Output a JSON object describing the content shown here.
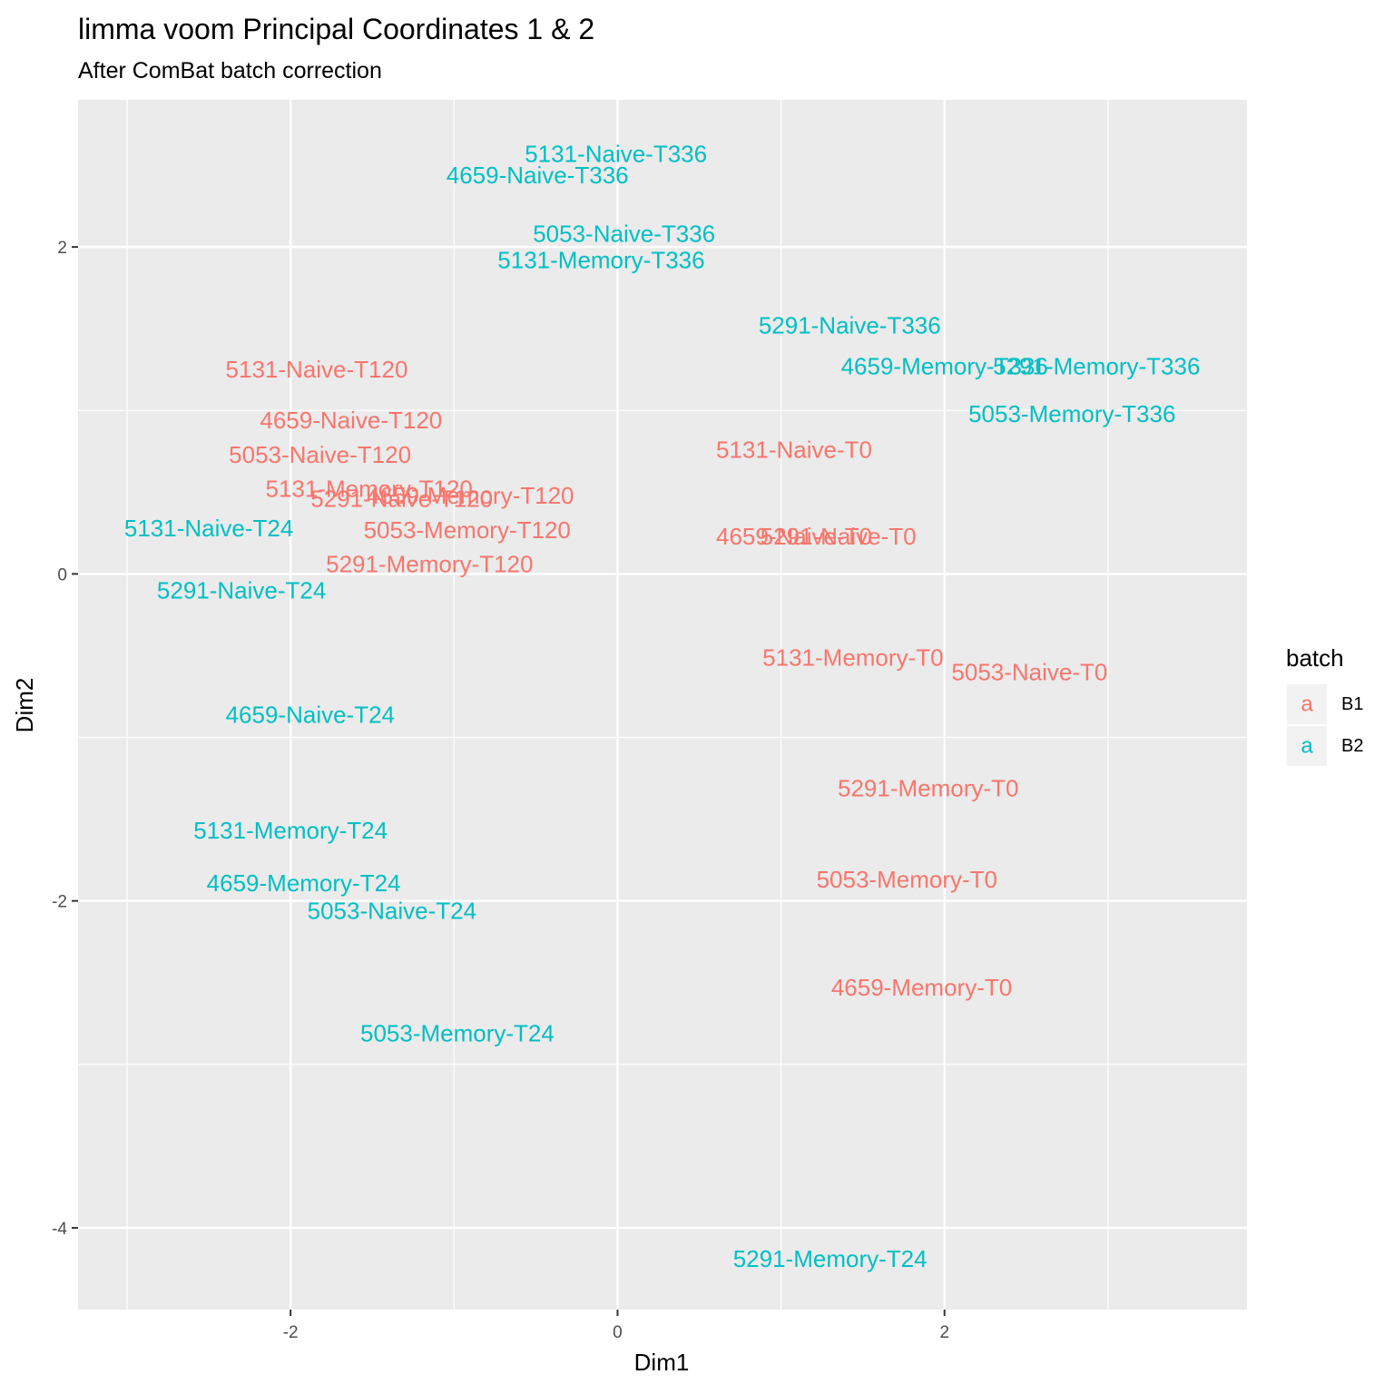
{
  "chart_data": {
    "type": "scatter",
    "title": "limma voom Principal Coordinates 1 & 2",
    "subtitle": "After ComBat batch correction",
    "xlabel": "Dim1",
    "ylabel": "Dim2",
    "xlim": [
      -3.3,
      3.85
    ],
    "ylim": [
      -4.5,
      2.9
    ],
    "xticks": [
      -2,
      0,
      2
    ],
    "yticks": [
      2,
      0,
      -2,
      -4
    ],
    "grid": true,
    "legend": {
      "title": "batch",
      "key_glyph": "a",
      "entries": [
        {
          "name": "B1",
          "color": "#F8766D"
        },
        {
          "name": "B2",
          "color": "#00BFC4"
        }
      ]
    },
    "series": [
      {
        "name": "B1",
        "color": "#F8766D",
        "points": [
          {
            "label": "5131-Naive-T120",
            "x": -1.84,
            "y": 1.25
          },
          {
            "label": "4659-Naive-T120",
            "x": -1.63,
            "y": 0.94
          },
          {
            "label": "5053-Naive-T120",
            "x": -1.82,
            "y": 0.73
          },
          {
            "label": "5131-Memory-T120",
            "x": -1.52,
            "y": 0.52
          },
          {
            "label": "5291-Naive-T120",
            "x": -1.32,
            "y": 0.46
          },
          {
            "label": "4659-Memory-T120",
            "x": -0.9,
            "y": 0.48
          },
          {
            "label": "5053-Memory-T120",
            "x": -0.92,
            "y": 0.27
          },
          {
            "label": "5291-Memory-T120",
            "x": -1.15,
            "y": 0.06
          },
          {
            "label": "5131-Naive-T0",
            "x": 1.08,
            "y": 0.76
          },
          {
            "label": "4659-Naive-T0",
            "x": 1.08,
            "y": 0.23
          },
          {
            "label": "5291-Naive-T0",
            "x": 1.35,
            "y": 0.23
          },
          {
            "label": "5131-Memory-T0",
            "x": 1.44,
            "y": -0.51
          },
          {
            "label": "5053-Naive-T0",
            "x": 2.52,
            "y": -0.6
          },
          {
            "label": "5291-Memory-T0",
            "x": 1.9,
            "y": -1.31
          },
          {
            "label": "5053-Memory-T0",
            "x": 1.77,
            "y": -1.87
          },
          {
            "label": "4659-Memory-T0",
            "x": 1.86,
            "y": -2.53
          }
        ]
      },
      {
        "name": "B2",
        "color": "#00BFC4",
        "points": [
          {
            "label": "5131-Naive-T336",
            "x": -0.01,
            "y": 2.57
          },
          {
            "label": "4659-Naive-T336",
            "x": -0.49,
            "y": 2.44
          },
          {
            "label": "5053-Naive-T336",
            "x": 0.04,
            "y": 2.08
          },
          {
            "label": "5131-Memory-T336",
            "x": -0.1,
            "y": 1.92
          },
          {
            "label": "5291-Naive-T336",
            "x": 1.42,
            "y": 1.52
          },
          {
            "label": "4659-Memory-T336",
            "x": 2.0,
            "y": 1.27
          },
          {
            "label": "5291-Memory-T336",
            "x": 2.93,
            "y": 1.27
          },
          {
            "label": "5053-Memory-T336",
            "x": 2.78,
            "y": 0.98
          },
          {
            "label": "5131-Naive-T24",
            "x": -2.5,
            "y": 0.28
          },
          {
            "label": "5291-Naive-T24",
            "x": -2.3,
            "y": -0.1
          },
          {
            "label": "4659-Naive-T24",
            "x": -1.88,
            "y": -0.86
          },
          {
            "label": "5131-Memory-T24",
            "x": -2.0,
            "y": -1.57
          },
          {
            "label": "4659-Memory-T24",
            "x": -1.92,
            "y": -1.89
          },
          {
            "label": "5053-Naive-T24",
            "x": -1.38,
            "y": -2.06
          },
          {
            "label": "5053-Memory-T24",
            "x": -0.98,
            "y": -2.81
          },
          {
            "label": "5291-Memory-T24",
            "x": 1.3,
            "y": -4.19
          }
        ]
      }
    ]
  }
}
